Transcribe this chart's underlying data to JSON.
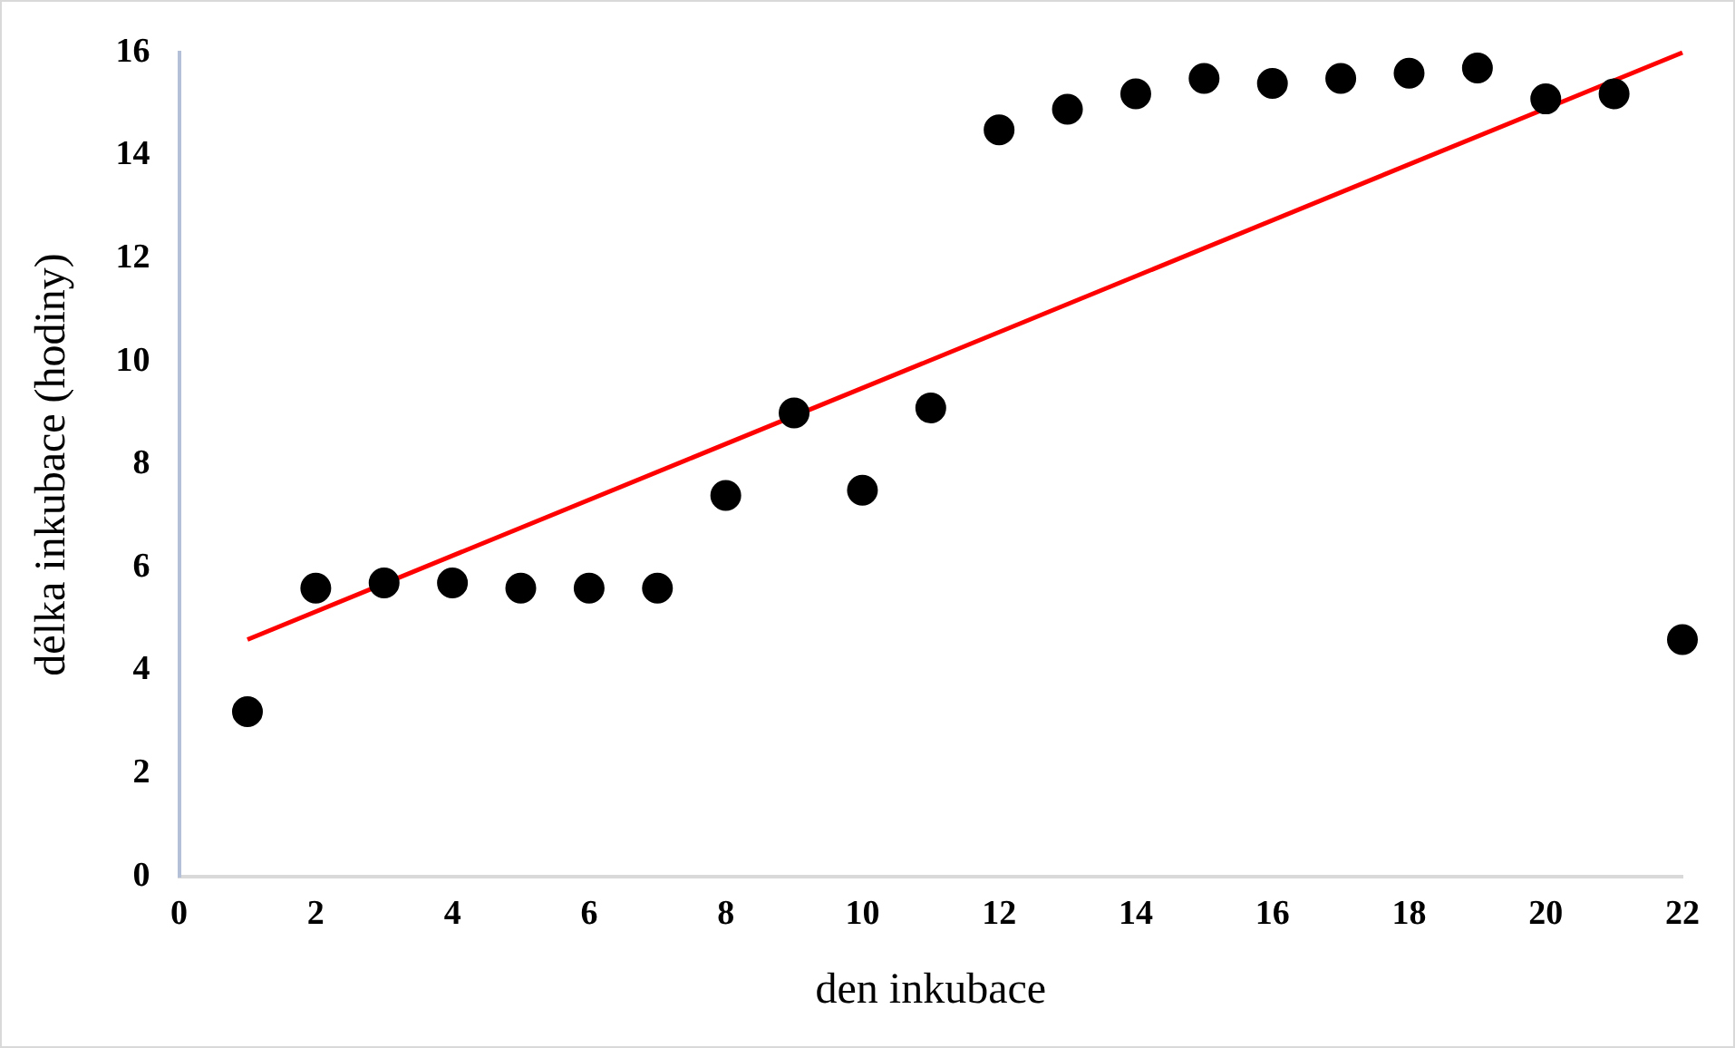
{
  "chart_data": {
    "type": "scatter",
    "xlabel": "den inkubace",
    "ylabel": "délka inkubace (hodiny)",
    "x": [
      1,
      2,
      3,
      4,
      5,
      6,
      7,
      8,
      9,
      10,
      11,
      12,
      13,
      14,
      15,
      16,
      17,
      18,
      19,
      20,
      21,
      22
    ],
    "series": [
      {
        "marker": "circle",
        "color": "#000000",
        "values": [
          3.2,
          5.6,
          5.7,
          5.7,
          5.6,
          5.6,
          5.6,
          7.4,
          9.0,
          7.5,
          9.1,
          14.5,
          14.9,
          15.2,
          15.5,
          15.4,
          15.5,
          15.6,
          15.7,
          15.1,
          15.2,
          4.6
        ]
      },
      {
        "type": "line",
        "marker": "none",
        "color": "#ff0000",
        "x": [
          1,
          22
        ],
        "values": [
          4.6,
          16.0
        ]
      }
    ],
    "xlim": [
      0,
      22
    ],
    "xticks": [
      0,
      2,
      4,
      6,
      8,
      10,
      12,
      14,
      16,
      18,
      20,
      22
    ],
    "ylim": [
      0,
      16
    ],
    "yticks": [
      0,
      2,
      4,
      6,
      8,
      10,
      12,
      14,
      16
    ],
    "grid": false,
    "legend": false
  }
}
